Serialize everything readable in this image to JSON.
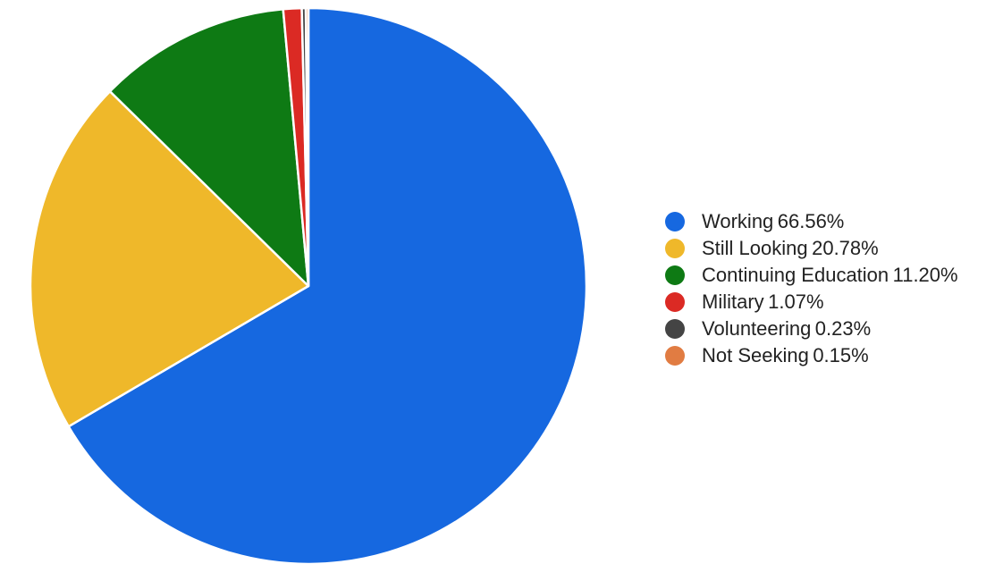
{
  "chart_data": {
    "type": "pie",
    "legend_position": "right",
    "slices": [
      {
        "label": "Working",
        "value": 66.56,
        "value_text": "66.56%",
        "color": "#1668e0"
      },
      {
        "label": "Still Looking",
        "value": 20.78,
        "value_text": "20.78%",
        "color": "#efb82a"
      },
      {
        "label": "Continuing Education",
        "value": 11.2,
        "value_text": "11.20%",
        "color": "#0e7a14"
      },
      {
        "label": "Military",
        "value": 1.07,
        "value_text": "1.07%",
        "color": "#db2a24"
      },
      {
        "label": "Volunteering",
        "value": 0.23,
        "value_text": "0.23%",
        "color": "#444444"
      },
      {
        "label": "Not Seeking",
        "value": 0.15,
        "value_text": "0.15%",
        "color": "#e17c42"
      }
    ]
  }
}
